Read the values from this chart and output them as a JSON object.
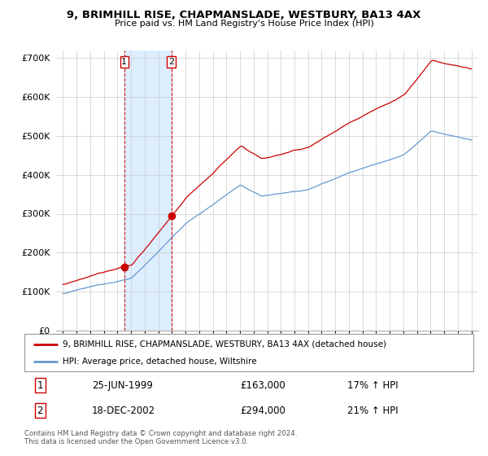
{
  "title": "9, BRIMHILL RISE, CHAPMANSLADE, WESTBURY, BA13 4AX",
  "subtitle": "Price paid vs. HM Land Registry's House Price Index (HPI)",
  "ylim": [
    0,
    720000
  ],
  "yticks": [
    0,
    100000,
    200000,
    300000,
    400000,
    500000,
    600000,
    700000
  ],
  "ytick_labels": [
    "£0",
    "£100K",
    "£200K",
    "£300K",
    "£400K",
    "£500K",
    "£600K",
    "£700K"
  ],
  "legend_line1": "9, BRIMHILL RISE, CHAPMANSLADE, WESTBURY, BA13 4AX (detached house)",
  "legend_line2": "HPI: Average price, detached house, Wiltshire",
  "transaction1_label": "1",
  "transaction1_date": "25-JUN-1999",
  "transaction1_price": "£163,000",
  "transaction1_hpi": "17% ↑ HPI",
  "transaction1_year": 1999.5,
  "transaction2_label": "2",
  "transaction2_date": "18-DEC-2002",
  "transaction2_price": "£294,000",
  "transaction2_hpi": "21% ↑ HPI",
  "transaction2_year": 2002.96,
  "footnote": "Contains HM Land Registry data © Crown copyright and database right 2024.\nThis data is licensed under the Open Government Licence v3.0.",
  "line_color_red": "#cc0000",
  "line_color_blue": "#6699cc",
  "shade_color": "#ddeeff",
  "background_color": "#ffffff",
  "grid_color": "#cccccc",
  "vline_color": "#cc0000",
  "marker1_year": 1999.5,
  "marker1_price": 163000,
  "marker2_year": 2002.96,
  "marker2_price": 294000,
  "xlim_left": 1994.5,
  "xlim_right": 2025.5
}
